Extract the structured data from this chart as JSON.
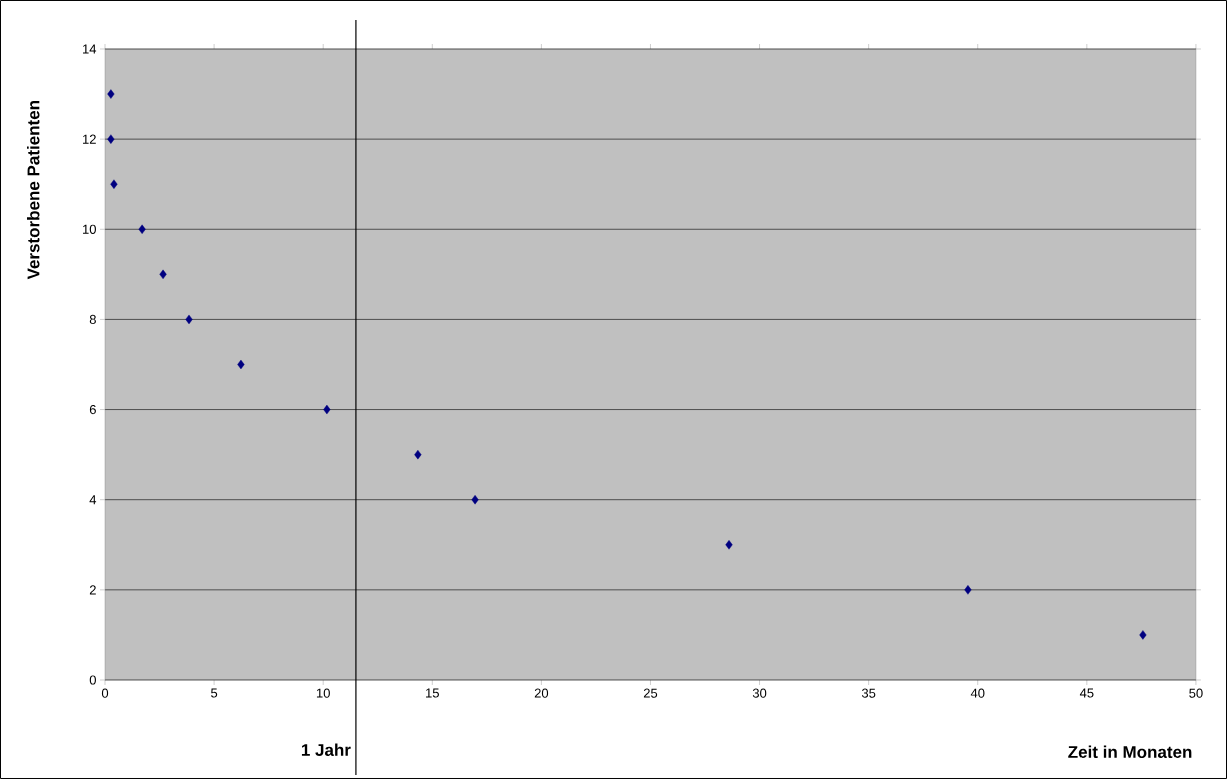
{
  "chart_data": {
    "type": "scatter",
    "xlabel": "Zeit in Monaten",
    "ylabel": "Verstorbene Patienten",
    "x": [
      0.27,
      0.27,
      0.41,
      1.7,
      2.66,
      3.85,
      6.23,
      10.17,
      14.34,
      16.96,
      28.6,
      39.55,
      47.57
    ],
    "values": [
      13,
      12,
      11,
      10,
      9,
      8,
      7,
      6,
      5,
      4,
      3,
      2,
      1
    ],
    "color": "#000080",
    "marker": "diamond",
    "grid": "y",
    "xlim": [
      0,
      50
    ],
    "ylim": [
      0,
      14
    ],
    "xticks": [
      0,
      5,
      10,
      15,
      20,
      25,
      30,
      35,
      40,
      45,
      50
    ],
    "yticks": [
      0,
      2,
      4,
      6,
      8,
      10,
      12,
      14
    ],
    "ref_lines": [
      {
        "axis": "x",
        "value": 11.5,
        "label": "1 Jahr",
        "color": "#000000"
      }
    ]
  }
}
